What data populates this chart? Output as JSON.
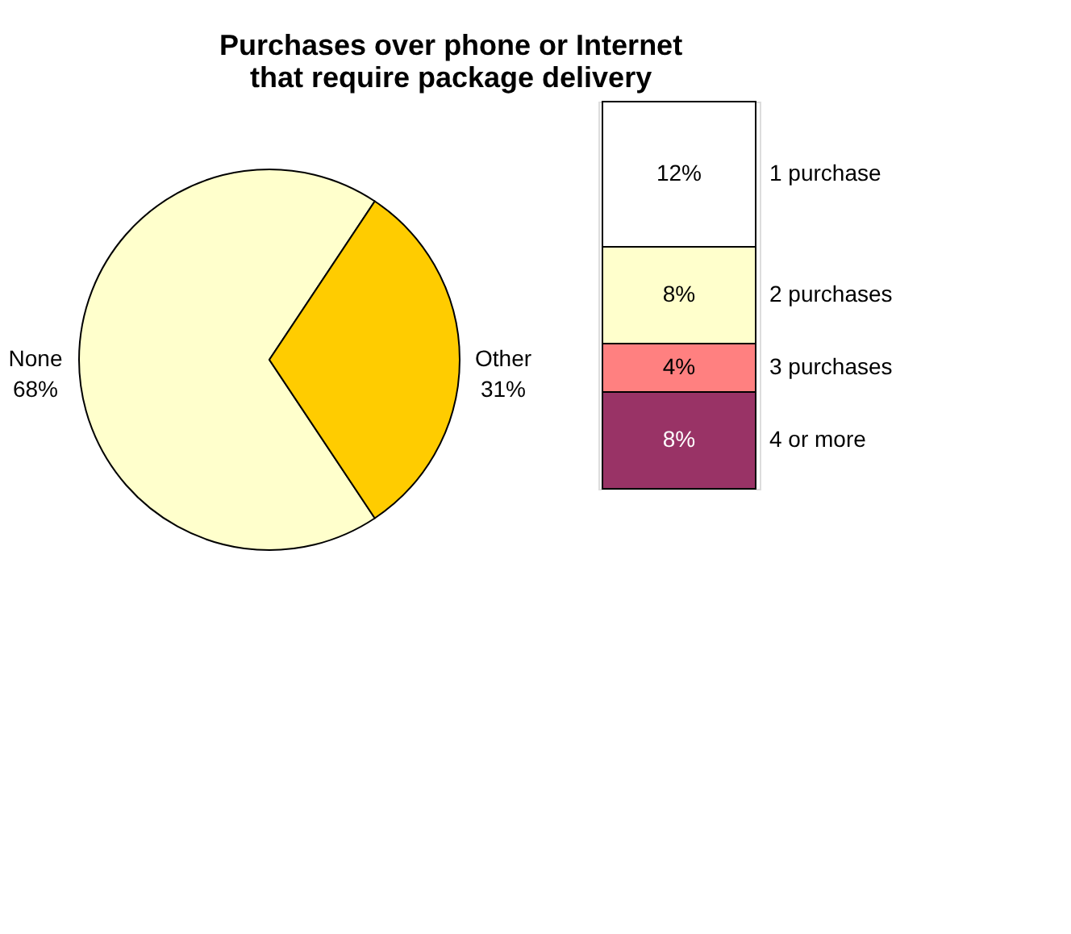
{
  "chart_data": [
    {
      "type": "pie",
      "title": "Purchases over phone or Internet\nthat require package delivery",
      "categories": [
        "None",
        "Other"
      ],
      "values": [
        68,
        31
      ],
      "colors": [
        "#ffffcc",
        "#ffcc00"
      ],
      "value_labels": [
        "68%",
        "31%"
      ]
    },
    {
      "type": "bar",
      "stacked": true,
      "categories": [
        null
      ],
      "series": [
        {
          "name": "4 or more",
          "color": "#993366",
          "values": [
            8
          ],
          "value_labels": [
            "8%"
          ]
        },
        {
          "name": "3 purchases",
          "color": "#ff8080",
          "values": [
            4
          ],
          "value_labels": [
            "4%"
          ]
        },
        {
          "name": "2 purchases",
          "color": "#ffffcc",
          "values": [
            8
          ],
          "value_labels": [
            "8%"
          ]
        },
        {
          "name": "1 purchase",
          "color": "#ffffff",
          "values": [
            12
          ],
          "value_labels": [
            "12%"
          ]
        }
      ]
    }
  ]
}
